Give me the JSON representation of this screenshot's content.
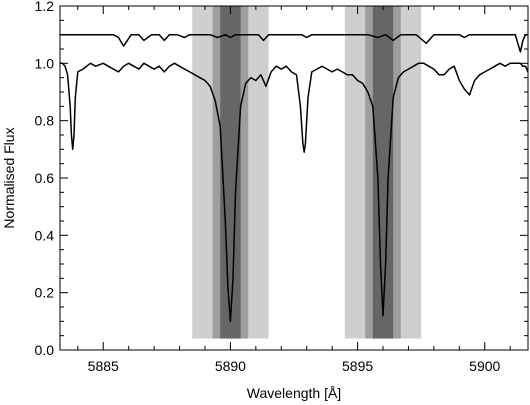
{
  "chart_data": {
    "type": "line",
    "xlabel": "Wavelength [Å]",
    "ylabel": "Normalised Flux",
    "xlim": [
      5883.3,
      5901.7
    ],
    "ylim": [
      0.0,
      1.2
    ],
    "xticks": [
      5885,
      5890,
      5895,
      5900
    ],
    "yticks": [
      0.0,
      0.2,
      0.4,
      0.6,
      0.8,
      1.0,
      1.2
    ],
    "ytick_labels": [
      "0.0",
      "0.2",
      "0.4",
      "0.6",
      "0.8",
      "1.0",
      "1.2"
    ],
    "grid": false,
    "band_y_range": [
      0.04,
      1.2
    ],
    "shaded_bands": [
      {
        "line": "D2",
        "center": 5890.0,
        "x0": 5888.5,
        "x1": 5891.5,
        "color": "#cfcfcf"
      },
      {
        "line": "D2",
        "center": 5890.0,
        "x0": 5889.3,
        "x1": 5890.7,
        "color": "#9e9e9e"
      },
      {
        "line": "D2",
        "center": 5890.0,
        "x0": 5889.6,
        "x1": 5890.4,
        "color": "#666666"
      },
      {
        "line": "D1",
        "center": 5896.0,
        "x0": 5894.5,
        "x1": 5897.5,
        "color": "#cfcfcf"
      },
      {
        "line": "D1",
        "center": 5896.0,
        "x0": 5895.3,
        "x1": 5896.7,
        "color": "#9e9e9e"
      },
      {
        "line": "D1",
        "center": 5896.0,
        "x0": 5895.6,
        "x1": 5896.4,
        "color": "#666666"
      }
    ],
    "series": [
      {
        "continuum": 1.0,
        "color": "#000000",
        "x": [
          5883.3,
          5883.4,
          5883.5,
          5883.6,
          5883.7,
          5883.75,
          5883.8,
          5883.85,
          5883.9,
          5884.0,
          5884.2,
          5884.5,
          5884.7,
          5885.0,
          5885.2,
          5885.4,
          5885.6,
          5885.8,
          5886.0,
          5886.2,
          5886.4,
          5886.6,
          5886.8,
          5887.0,
          5887.2,
          5887.4,
          5887.6,
          5887.8,
          5888.0,
          5888.2,
          5888.4,
          5888.6,
          5888.8,
          5889.0,
          5889.2,
          5889.4,
          5889.6,
          5889.8,
          5889.9,
          5890.0,
          5890.1,
          5890.2,
          5890.4,
          5890.6,
          5890.8,
          5891.0,
          5891.2,
          5891.4,
          5891.6,
          5891.8,
          5892.0,
          5892.2,
          5892.4,
          5892.6,
          5892.75,
          5892.85,
          5892.9,
          5892.95,
          5893.05,
          5893.2,
          5893.4,
          5893.6,
          5893.8,
          5894.0,
          5894.2,
          5894.4,
          5894.6,
          5894.8,
          5895.0,
          5895.2,
          5895.4,
          5895.6,
          5895.8,
          5895.9,
          5896.0,
          5896.1,
          5896.2,
          5896.4,
          5896.6,
          5896.8,
          5897.0,
          5897.2,
          5897.4,
          5897.6,
          5897.8,
          5898.0,
          5898.2,
          5898.4,
          5898.6,
          5898.8,
          5899.0,
          5899.2,
          5899.4,
          5899.6,
          5899.8,
          5900.0,
          5900.2,
          5900.4,
          5900.6,
          5900.8,
          5901.0,
          5901.2,
          5901.4,
          5901.5,
          5901.6,
          5901.7
        ],
        "y": [
          1.0,
          1.0,
          0.99,
          0.96,
          0.85,
          0.75,
          0.7,
          0.75,
          0.88,
          0.97,
          0.98,
          1.0,
          0.99,
          1.0,
          0.99,
          0.98,
          0.97,
          0.99,
          1.0,
          0.99,
          0.98,
          1.0,
          0.99,
          0.98,
          0.99,
          0.97,
          0.99,
          1.0,
          0.99,
          0.98,
          0.97,
          0.96,
          0.95,
          0.94,
          0.92,
          0.87,
          0.78,
          0.45,
          0.22,
          0.1,
          0.25,
          0.55,
          0.85,
          0.93,
          0.95,
          0.94,
          0.96,
          0.92,
          0.97,
          0.99,
          0.98,
          0.99,
          0.97,
          0.96,
          0.85,
          0.72,
          0.69,
          0.72,
          0.88,
          0.97,
          0.98,
          0.99,
          0.98,
          0.97,
          0.98,
          0.97,
          0.96,
          0.96,
          0.94,
          0.93,
          0.9,
          0.85,
          0.6,
          0.3,
          0.12,
          0.3,
          0.6,
          0.88,
          0.95,
          0.97,
          0.98,
          0.99,
          1.0,
          1.0,
          0.99,
          0.98,
          0.96,
          0.96,
          0.98,
          0.99,
          0.94,
          0.91,
          0.89,
          0.94,
          0.96,
          0.97,
          0.98,
          0.99,
          1.0,
          0.99,
          1.0,
          1.0,
          1.0,
          0.99,
          0.99,
          0.97
        ]
      },
      {
        "continuum": 1.1,
        "color": "#000000",
        "x": [
          5883.3,
          5883.8,
          5884.2,
          5884.6,
          5885.0,
          5885.4,
          5885.6,
          5885.8,
          5886.1,
          5886.4,
          5886.6,
          5886.9,
          5887.2,
          5887.4,
          5887.6,
          5887.9,
          5888.2,
          5888.4,
          5888.6,
          5888.9,
          5889.2,
          5889.5,
          5889.8,
          5890.0,
          5890.2,
          5890.5,
          5890.8,
          5891.1,
          5891.3,
          5891.5,
          5891.8,
          5892.1,
          5892.5,
          5892.8,
          5893.0,
          5893.2,
          5893.5,
          5893.9,
          5894.2,
          5894.5,
          5894.8,
          5895.1,
          5895.4,
          5895.8,
          5896.1,
          5896.4,
          5896.7,
          5897.0,
          5897.3,
          5897.7,
          5898.0,
          5898.4,
          5898.7,
          5899.0,
          5899.2,
          5899.4,
          5899.7,
          5900.0,
          5900.4,
          5900.7,
          5901.0,
          5901.2,
          5901.3,
          5901.4,
          5901.5,
          5901.6,
          5901.7
        ],
        "y": [
          1.1,
          1.1,
          1.1,
          1.1,
          1.1,
          1.1,
          1.09,
          1.06,
          1.1,
          1.1,
          1.08,
          1.1,
          1.1,
          1.08,
          1.1,
          1.1,
          1.09,
          1.1,
          1.1,
          1.1,
          1.1,
          1.09,
          1.1,
          1.09,
          1.1,
          1.1,
          1.1,
          1.1,
          1.08,
          1.1,
          1.1,
          1.1,
          1.1,
          1.1,
          1.09,
          1.1,
          1.1,
          1.1,
          1.1,
          1.1,
          1.1,
          1.1,
          1.1,
          1.09,
          1.1,
          1.08,
          1.1,
          1.1,
          1.1,
          1.07,
          1.1,
          1.1,
          1.1,
          1.1,
          1.09,
          1.1,
          1.1,
          1.1,
          1.1,
          1.1,
          1.1,
          1.1,
          1.07,
          1.04,
          1.08,
          1.1,
          1.1
        ]
      }
    ]
  }
}
